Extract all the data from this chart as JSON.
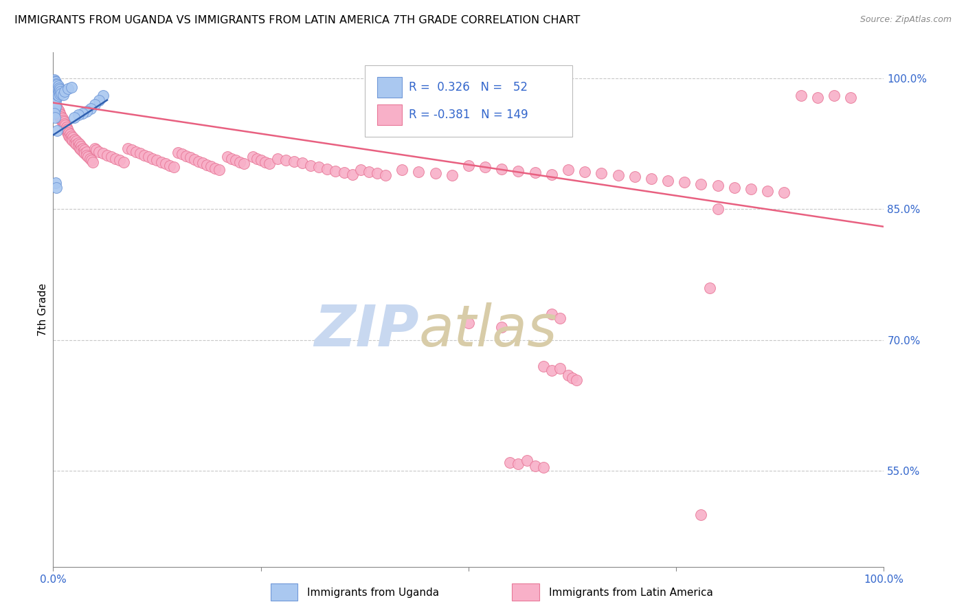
{
  "title": "IMMIGRANTS FROM UGANDA VS IMMIGRANTS FROM LATIN AMERICA 7TH GRADE CORRELATION CHART",
  "source": "Source: ZipAtlas.com",
  "ylabel": "7th Grade",
  "right_yticks": [
    0.55,
    0.7,
    0.85,
    1.0
  ],
  "right_ytick_labels": [
    "55.0%",
    "70.0%",
    "85.0%",
    "100.0%"
  ],
  "uganda_color": "#aac8f0",
  "uganda_edge": "#7098d8",
  "latin_color": "#f8b0c8",
  "latin_edge": "#e87898",
  "blue_line_color": "#3060b0",
  "pink_line_color": "#e86080",
  "watermark_zip_color": "#c8d8f0",
  "watermark_atlas_color": "#d8cca8",
  "background": "#ffffff",
  "grid_color": "#c8c8c8",
  "xlim": [
    0.0,
    1.0
  ],
  "ylim": [
    0.44,
    1.03
  ],
  "uganda_trend_x": [
    0.0,
    0.065
  ],
  "uganda_trend_y": [
    0.935,
    0.975
  ],
  "latin_trend_x": [
    0.0,
    1.0
  ],
  "latin_trend_y": [
    0.972,
    0.83
  ],
  "uganda_scatter": [
    [
      0.001,
      0.998
    ],
    [
      0.001,
      0.994
    ],
    [
      0.001,
      0.99
    ],
    [
      0.001,
      0.985
    ],
    [
      0.002,
      0.997
    ],
    [
      0.002,
      0.992
    ],
    [
      0.002,
      0.988
    ],
    [
      0.002,
      0.982
    ],
    [
      0.002,
      0.976
    ],
    [
      0.002,
      0.97
    ],
    [
      0.002,
      0.964
    ],
    [
      0.003,
      0.996
    ],
    [
      0.003,
      0.991
    ],
    [
      0.003,
      0.986
    ],
    [
      0.003,
      0.98
    ],
    [
      0.003,
      0.974
    ],
    [
      0.003,
      0.968
    ],
    [
      0.004,
      0.994
    ],
    [
      0.004,
      0.989
    ],
    [
      0.004,
      0.984
    ],
    [
      0.004,
      0.978
    ],
    [
      0.005,
      0.993
    ],
    [
      0.005,
      0.987
    ],
    [
      0.005,
      0.981
    ],
    [
      0.006,
      0.991
    ],
    [
      0.006,
      0.986
    ],
    [
      0.006,
      0.98
    ],
    [
      0.007,
      0.989
    ],
    [
      0.007,
      0.984
    ],
    [
      0.008,
      0.987
    ],
    [
      0.008,
      0.982
    ],
    [
      0.009,
      0.985
    ],
    [
      0.01,
      0.983
    ],
    [
      0.012,
      0.981
    ],
    [
      0.014,
      0.985
    ],
    [
      0.018,
      0.988
    ],
    [
      0.022,
      0.99
    ],
    [
      0.005,
      0.94
    ],
    [
      0.003,
      0.88
    ],
    [
      0.004,
      0.875
    ],
    [
      0.001,
      0.96
    ],
    [
      0.002,
      0.955
    ],
    [
      0.06,
      0.98
    ],
    [
      0.055,
      0.975
    ],
    [
      0.05,
      0.97
    ],
    [
      0.045,
      0.965
    ],
    [
      0.04,
      0.962
    ],
    [
      0.035,
      0.96
    ],
    [
      0.03,
      0.958
    ],
    [
      0.025,
      0.955
    ]
  ],
  "latin_scatter": [
    [
      0.001,
      0.975
    ],
    [
      0.002,
      0.972
    ],
    [
      0.002,
      0.968
    ],
    [
      0.003,
      0.97
    ],
    [
      0.003,
      0.966
    ],
    [
      0.004,
      0.968
    ],
    [
      0.004,
      0.964
    ],
    [
      0.005,
      0.966
    ],
    [
      0.005,
      0.962
    ],
    [
      0.006,
      0.964
    ],
    [
      0.006,
      0.96
    ],
    [
      0.007,
      0.962
    ],
    [
      0.007,
      0.958
    ],
    [
      0.008,
      0.96
    ],
    [
      0.008,
      0.956
    ],
    [
      0.009,
      0.958
    ],
    [
      0.009,
      0.954
    ],
    [
      0.01,
      0.956
    ],
    [
      0.01,
      0.952
    ],
    [
      0.011,
      0.954
    ],
    [
      0.011,
      0.95
    ],
    [
      0.012,
      0.952
    ],
    [
      0.012,
      0.948
    ],
    [
      0.013,
      0.95
    ],
    [
      0.013,
      0.946
    ],
    [
      0.014,
      0.948
    ],
    [
      0.014,
      0.944
    ],
    [
      0.015,
      0.946
    ],
    [
      0.015,
      0.942
    ],
    [
      0.016,
      0.944
    ],
    [
      0.016,
      0.94
    ],
    [
      0.017,
      0.942
    ],
    [
      0.017,
      0.938
    ],
    [
      0.018,
      0.94
    ],
    [
      0.018,
      0.936
    ],
    [
      0.019,
      0.938
    ],
    [
      0.019,
      0.934
    ],
    [
      0.02,
      0.936
    ],
    [
      0.02,
      0.932
    ],
    [
      0.022,
      0.934
    ],
    [
      0.022,
      0.93
    ],
    [
      0.024,
      0.932
    ],
    [
      0.024,
      0.928
    ],
    [
      0.026,
      0.93
    ],
    [
      0.026,
      0.926
    ],
    [
      0.028,
      0.928
    ],
    [
      0.028,
      0.924
    ],
    [
      0.03,
      0.926
    ],
    [
      0.03,
      0.922
    ],
    [
      0.032,
      0.924
    ],
    [
      0.032,
      0.92
    ],
    [
      0.034,
      0.922
    ],
    [
      0.034,
      0.918
    ],
    [
      0.036,
      0.92
    ],
    [
      0.036,
      0.916
    ],
    [
      0.038,
      0.918
    ],
    [
      0.038,
      0.914
    ],
    [
      0.04,
      0.916
    ],
    [
      0.04,
      0.912
    ],
    [
      0.042,
      0.91
    ],
    [
      0.044,
      0.908
    ],
    [
      0.046,
      0.906
    ],
    [
      0.048,
      0.904
    ],
    [
      0.05,
      0.92
    ],
    [
      0.052,
      0.918
    ],
    [
      0.055,
      0.916
    ],
    [
      0.06,
      0.914
    ],
    [
      0.065,
      0.912
    ],
    [
      0.07,
      0.91
    ],
    [
      0.075,
      0.908
    ],
    [
      0.08,
      0.906
    ],
    [
      0.085,
      0.904
    ],
    [
      0.09,
      0.92
    ],
    [
      0.095,
      0.918
    ],
    [
      0.1,
      0.916
    ],
    [
      0.105,
      0.914
    ],
    [
      0.11,
      0.912
    ],
    [
      0.115,
      0.91
    ],
    [
      0.12,
      0.908
    ],
    [
      0.125,
      0.906
    ],
    [
      0.13,
      0.904
    ],
    [
      0.135,
      0.902
    ],
    [
      0.14,
      0.9
    ],
    [
      0.145,
      0.898
    ],
    [
      0.15,
      0.915
    ],
    [
      0.155,
      0.913
    ],
    [
      0.16,
      0.911
    ],
    [
      0.165,
      0.909
    ],
    [
      0.17,
      0.907
    ],
    [
      0.175,
      0.905
    ],
    [
      0.18,
      0.903
    ],
    [
      0.185,
      0.901
    ],
    [
      0.19,
      0.899
    ],
    [
      0.195,
      0.897
    ],
    [
      0.2,
      0.895
    ],
    [
      0.21,
      0.91
    ],
    [
      0.215,
      0.908
    ],
    [
      0.22,
      0.906
    ],
    [
      0.225,
      0.904
    ],
    [
      0.23,
      0.902
    ],
    [
      0.24,
      0.91
    ],
    [
      0.245,
      0.908
    ],
    [
      0.25,
      0.906
    ],
    [
      0.255,
      0.904
    ],
    [
      0.26,
      0.902
    ],
    [
      0.27,
      0.908
    ],
    [
      0.28,
      0.906
    ],
    [
      0.29,
      0.905
    ],
    [
      0.3,
      0.903
    ],
    [
      0.31,
      0.9
    ],
    [
      0.32,
      0.898
    ],
    [
      0.33,
      0.896
    ],
    [
      0.34,
      0.894
    ],
    [
      0.35,
      0.892
    ],
    [
      0.36,
      0.89
    ],
    [
      0.37,
      0.895
    ],
    [
      0.38,
      0.893
    ],
    [
      0.39,
      0.891
    ],
    [
      0.4,
      0.889
    ],
    [
      0.42,
      0.895
    ],
    [
      0.44,
      0.893
    ],
    [
      0.46,
      0.891
    ],
    [
      0.48,
      0.889
    ],
    [
      0.5,
      0.9
    ],
    [
      0.52,
      0.898
    ],
    [
      0.54,
      0.896
    ],
    [
      0.56,
      0.894
    ],
    [
      0.58,
      0.892
    ],
    [
      0.6,
      0.89
    ],
    [
      0.62,
      0.895
    ],
    [
      0.64,
      0.893
    ],
    [
      0.66,
      0.891
    ],
    [
      0.68,
      0.889
    ],
    [
      0.7,
      0.887
    ],
    [
      0.72,
      0.885
    ],
    [
      0.74,
      0.883
    ],
    [
      0.76,
      0.881
    ],
    [
      0.78,
      0.879
    ],
    [
      0.8,
      0.877
    ],
    [
      0.82,
      0.875
    ],
    [
      0.84,
      0.873
    ],
    [
      0.86,
      0.871
    ],
    [
      0.88,
      0.869
    ],
    [
      0.9,
      0.98
    ],
    [
      0.92,
      0.978
    ],
    [
      0.94,
      0.98
    ],
    [
      0.96,
      0.978
    ],
    [
      0.5,
      0.72
    ],
    [
      0.54,
      0.715
    ],
    [
      0.6,
      0.73
    ],
    [
      0.61,
      0.725
    ],
    [
      0.59,
      0.67
    ],
    [
      0.6,
      0.665
    ],
    [
      0.61,
      0.668
    ],
    [
      0.62,
      0.66
    ],
    [
      0.625,
      0.657
    ],
    [
      0.63,
      0.654
    ],
    [
      0.55,
      0.56
    ],
    [
      0.56,
      0.558
    ],
    [
      0.57,
      0.562
    ],
    [
      0.58,
      0.556
    ],
    [
      0.59,
      0.554
    ],
    [
      0.78,
      0.5
    ],
    [
      0.79,
      0.76
    ],
    [
      0.8,
      0.85
    ]
  ]
}
